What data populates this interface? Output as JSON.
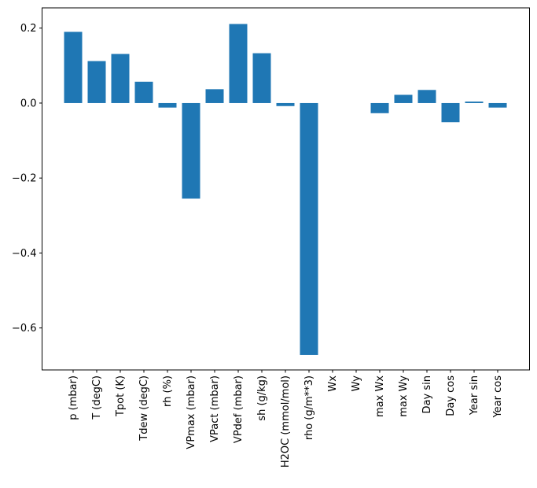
{
  "figure": {
    "background": "#ffffff"
  },
  "chart_data": {
    "type": "bar",
    "title": "",
    "xlabel": "",
    "ylabel": "",
    "grid": false,
    "legend": null,
    "bar_color": "#1f77b4",
    "axis_color": "#000000",
    "xtick_rotation": 90,
    "ylim": [
      -0.712,
      0.254
    ],
    "yticks": [
      0.2,
      0.0,
      -0.2,
      -0.4,
      -0.6
    ],
    "ytick_labels": [
      "0.2",
      "0.0",
      "−0.2",
      "−0.4",
      "−0.6"
    ],
    "categories": [
      "p (mbar)",
      "T (degC)",
      "Tpot (K)",
      "Tdew (degC)",
      "rh (%)",
      "VPmax (mbar)",
      "VPact (mbar)",
      "VPdef (mbar)",
      "sh (g/kg)",
      "H2OC (mmol/mol)",
      "rho (g/m**3)",
      "Wx",
      "Wy",
      "max Wx",
      "max Wy",
      "Day sin",
      "Day cos",
      "Year sin",
      "Year cos"
    ],
    "values": [
      0.19,
      0.112,
      0.131,
      0.057,
      -0.012,
      -0.255,
      0.037,
      0.211,
      0.133,
      -0.008,
      -0.672,
      0.0,
      0.0,
      -0.027,
      0.022,
      0.035,
      -0.051,
      0.004,
      -0.012
    ]
  }
}
